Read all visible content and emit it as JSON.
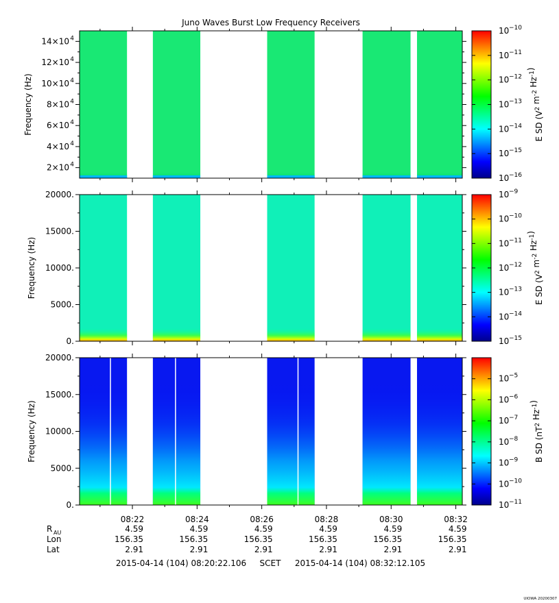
{
  "title": "Juno Waves Burst Low Frequency Receivers",
  "footer": {
    "start": "2015-04-14 (104) 08:20:22.106",
    "scet": "SCET",
    "end": "2015-04-14 (104) 08:32:12.105",
    "stamp": "UIOWA 20200307"
  },
  "chart_data": [
    {
      "type": "heatmap",
      "title": "",
      "ylabel": "Frequency (Hz)",
      "yticks": [
        {
          "label": "2×10^4",
          "value": 20000
        },
        {
          "label": "4×10^4",
          "value": 40000
        },
        {
          "label": "6×10^4",
          "value": 60000
        },
        {
          "label": "8×10^4",
          "value": 80000
        },
        {
          "label": "10×10^4",
          "value": 100000
        },
        {
          "label": "12×10^4",
          "value": 120000
        },
        {
          "label": "14×10^4",
          "value": 140000
        }
      ],
      "ylim": [
        10000,
        150000
      ],
      "colorbar": {
        "label": "E SD (V^2 m^-2 Hz^-1)",
        "scale": "log",
        "range": [
          1e-16,
          1e-10
        ],
        "ticks": [
          "10^-10",
          "10^-11",
          "10^-12",
          "10^-13",
          "10^-14",
          "10^-15",
          "10^-16"
        ]
      },
      "data_blocks": [
        {
          "start": "08:20:22",
          "end": "08:21:50"
        },
        {
          "start": "08:22:38",
          "end": "08:24:06"
        },
        {
          "start": "08:26:10",
          "end": "08:27:38"
        },
        {
          "start": "08:29:07",
          "end": "08:30:36"
        },
        {
          "start": "08:30:48",
          "end": "08:32:12"
        }
      ],
      "dominant_level": "10^-13"
    },
    {
      "type": "heatmap",
      "title": "",
      "ylabel": "Frequency (Hz)",
      "yticks": [
        {
          "label": "0.",
          "value": 0
        },
        {
          "label": "5000.",
          "value": 5000
        },
        {
          "label": "10000.",
          "value": 10000
        },
        {
          "label": "15000.",
          "value": 15000
        },
        {
          "label": "20000.",
          "value": 20000
        }
      ],
      "ylim": [
        0,
        20000
      ],
      "colorbar": {
        "label": "E SD (V^2 m^-2 Hz^-1)",
        "scale": "log",
        "range": [
          1e-15,
          1e-09
        ],
        "ticks": [
          "10^-9",
          "10^-10",
          "10^-11",
          "10^-12",
          "10^-13",
          "10^-14",
          "10^-15"
        ]
      },
      "data_blocks": [
        {
          "start": "08:20:22",
          "end": "08:21:50"
        },
        {
          "start": "08:22:38",
          "end": "08:24:06"
        },
        {
          "start": "08:26:10",
          "end": "08:27:38"
        },
        {
          "start": "08:29:07",
          "end": "08:30:36"
        },
        {
          "start": "08:30:48",
          "end": "08:32:12"
        }
      ],
      "dominant_level": "10^-13"
    },
    {
      "type": "heatmap",
      "title": "",
      "ylabel": "Frequency (Hz)",
      "yticks": [
        {
          "label": "0.",
          "value": 0
        },
        {
          "label": "5000.",
          "value": 5000
        },
        {
          "label": "10000.",
          "value": 10000
        },
        {
          "label": "15000.",
          "value": 15000
        },
        {
          "label": "20000.",
          "value": 20000
        }
      ],
      "ylim": [
        0,
        20000
      ],
      "colorbar": {
        "label": "B SD (nT^2 Hz^-1)",
        "scale": "log",
        "range": [
          1e-11,
          0.0001
        ],
        "ticks": [
          "10^-5",
          "10^-6",
          "10^-7",
          "10^-8",
          "10^-9",
          "10^-10",
          "10^-11"
        ]
      },
      "data_blocks": [
        {
          "start": "08:20:22",
          "end": "08:21:50"
        },
        {
          "start": "08:22:38",
          "end": "08:24:06"
        },
        {
          "start": "08:26:10",
          "end": "08:27:38"
        },
        {
          "start": "08:29:07",
          "end": "08:30:36"
        },
        {
          "start": "08:30:48",
          "end": "08:32:12"
        }
      ],
      "dominant_level": "10^-10"
    }
  ],
  "time_axis": {
    "start": "08:20:22",
    "end": "08:32:12",
    "major_labels": [
      "08:22",
      "08:24",
      "08:26",
      "08:28",
      "08:30",
      "08:32"
    ]
  },
  "ephemeris": {
    "rows": [
      {
        "name": "R",
        "sub": "AU",
        "values": [
          "4.59",
          "4.59",
          "4.59",
          "4.59",
          "4.59",
          "4.59"
        ]
      },
      {
        "name": "Lon",
        "values": [
          "156.35",
          "156.35",
          "156.35",
          "156.35",
          "156.35",
          "156.35"
        ]
      },
      {
        "name": "Lat",
        "values": [
          "2.91",
          "2.91",
          "2.91",
          "2.91",
          "2.91",
          "2.91"
        ]
      }
    ]
  },
  "colors": {
    "spectrum": [
      "#00008b",
      "#0000ff",
      "#0080ff",
      "#00ffff",
      "#00ff80",
      "#00ff00",
      "#80ff00",
      "#ffff00",
      "#ff8000",
      "#ff0000"
    ]
  }
}
